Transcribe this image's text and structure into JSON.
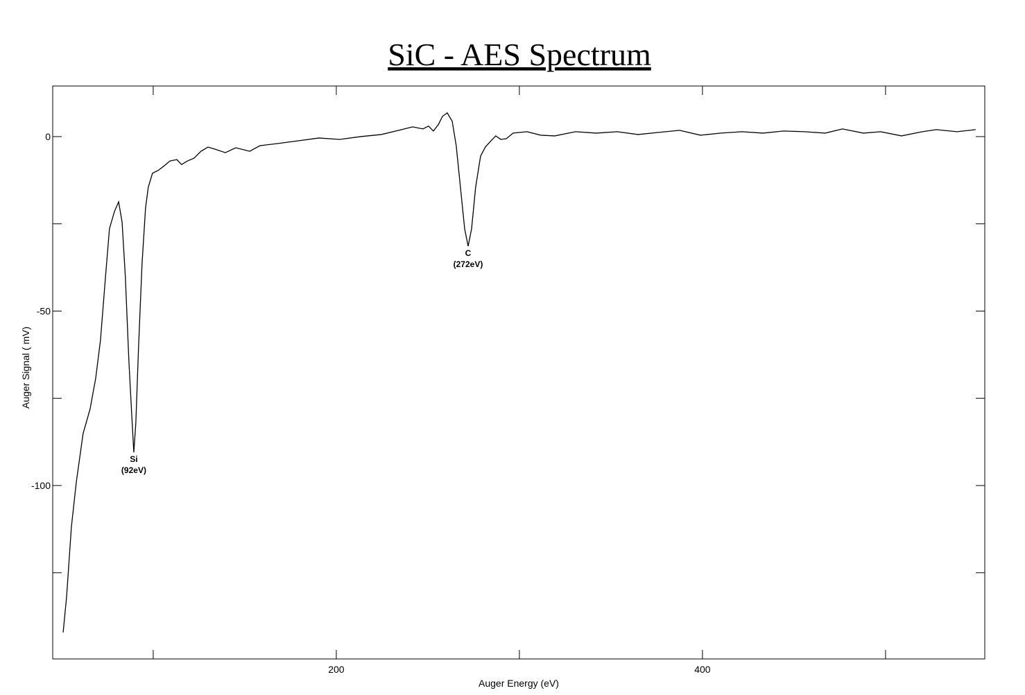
{
  "chart_data": {
    "type": "line",
    "title": "SiC - AES Spectrum",
    "x_label": "Auger Energy (eV)",
    "y_label": "Auger Signal ( mV)",
    "color": "#000000",
    "xlim": [
      45.1,
      554.2
    ],
    "xticks": [
      200,
      400
    ],
    "xminorticks": [
      100,
      300,
      500
    ],
    "ylim": [
      -149.7,
      14.5
    ],
    "yticks": [
      0,
      -50,
      -100
    ],
    "yminorticks": [
      -25,
      -75,
      -125
    ],
    "x": [
      50.8,
      52.7,
      55.3,
      58.0,
      61.7,
      65.5,
      68.6,
      71.2,
      73.9,
      76.1,
      78.8,
      81.1,
      83.0,
      84.8,
      86.7,
      88.3,
      89.4,
      90.5,
      92.0,
      93.9,
      95.8,
      97.3,
      99.6,
      102.7,
      105.7,
      109.1,
      112.9,
      115.5,
      118.6,
      122.3,
      126.1,
      129.9,
      133.7,
      139.4,
      145.1,
      152.7,
      158.3,
      167.8,
      179.2,
      190.5,
      201.9,
      213.3,
      224.6,
      234.1,
      241.7,
      247.3,
      250.4,
      253.0,
      255.7,
      258.0,
      260.6,
      263.3,
      265.5,
      267.8,
      270.1,
      272.0,
      273.9,
      276.1,
      278.8,
      281.4,
      284.5,
      287.1,
      289.8,
      292.8,
      296.6,
      304.2,
      311.7,
      319.3,
      330.7,
      342.0,
      353.4,
      364.8,
      376.1,
      387.5,
      398.9,
      410.2,
      421.6,
      433.0,
      444.3,
      455.7,
      467.0,
      476.5,
      487.9,
      497.3,
      508.7,
      520.1,
      527.7,
      539.0,
      549.2
    ],
    "values": [
      -142.1,
      -131.8,
      -111.9,
      -99.0,
      -85.1,
      -78.1,
      -69.2,
      -58.3,
      -40.4,
      -26.4,
      -21.5,
      -18.7,
      -24.5,
      -40.4,
      -64.2,
      -80.1,
      -90.5,
      -82.1,
      -60.2,
      -36.4,
      -20.5,
      -14.5,
      -10.5,
      -9.7,
      -8.5,
      -7.0,
      -6.6,
      -8.0,
      -7.0,
      -6.2,
      -4.2,
      -3.0,
      -3.6,
      -4.6,
      -3.2,
      -4.2,
      -2.6,
      -2.0,
      -1.2,
      -0.4,
      -0.8,
      0.0,
      0.6,
      1.8,
      2.8,
      2.2,
      3.0,
      1.6,
      3.4,
      5.8,
      6.8,
      4.4,
      -2.6,
      -14.5,
      -26.4,
      -31.4,
      -26.4,
      -14.5,
      -5.6,
      -3.0,
      -1.2,
      0.2,
      -0.8,
      -0.6,
      1.0,
      1.4,
      0.4,
      0.2,
      1.4,
      1.0,
      1.4,
      0.6,
      1.2,
      1.8,
      0.4,
      1.0,
      1.4,
      1.0,
      1.6,
      1.4,
      1.0,
      2.2,
      1.0,
      1.4,
      0.2,
      1.4,
      2.0,
      1.4,
      2.0
    ],
    "annotations": [
      {
        "lines": [
          "Si",
          "(92eV)"
        ],
        "x": 89.4,
        "y": -90.5
      },
      {
        "lines": [
          "C",
          "(272eV)"
        ],
        "x": 272.0,
        "y": -31.4
      }
    ]
  }
}
